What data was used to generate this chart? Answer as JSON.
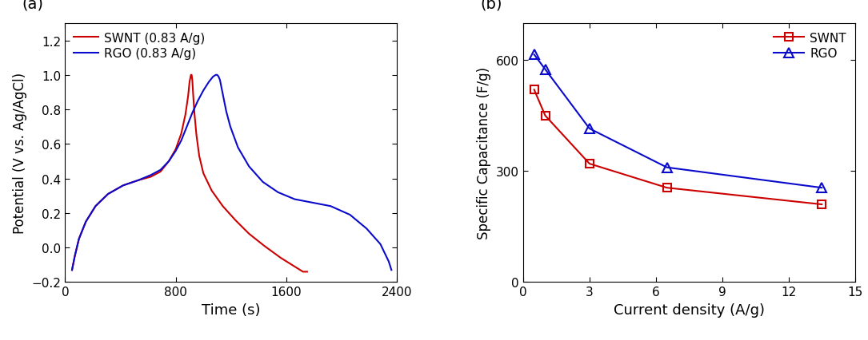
{
  "panel_a": {
    "title": "(a)",
    "xlabel": "Time (s)",
    "ylabel": "Potential (V vs. Ag/AgCl)",
    "xlim": [
      0,
      2400
    ],
    "ylim": [
      -0.2,
      1.3
    ],
    "xticks": [
      0,
      800,
      1600,
      2400
    ],
    "yticks": [
      -0.2,
      0.0,
      0.2,
      0.4,
      0.6,
      0.8,
      1.0,
      1.2
    ],
    "swnt_color": "#cc0000",
    "rgo_color": "#0a0acc",
    "swnt_label": "SWNT (0.83 A/g)",
    "rgo_label": "RGO (0.83 A/g)",
    "swnt_x": [
      50,
      70,
      100,
      150,
      220,
      310,
      420,
      530,
      620,
      690,
      750,
      800,
      840,
      870,
      890,
      900,
      910,
      915,
      920,
      925,
      935,
      950,
      970,
      1000,
      1060,
      1140,
      1230,
      1330,
      1440,
      1560,
      1660,
      1720,
      1750
    ],
    "swnt_y": [
      -0.13,
      -0.05,
      0.05,
      0.15,
      0.24,
      0.31,
      0.36,
      0.39,
      0.41,
      0.44,
      0.5,
      0.57,
      0.66,
      0.77,
      0.88,
      0.96,
      1.0,
      1.0,
      0.97,
      0.9,
      0.78,
      0.65,
      0.53,
      0.43,
      0.33,
      0.24,
      0.16,
      0.08,
      0.01,
      -0.06,
      -0.11,
      -0.14,
      -0.14
    ],
    "rgo_x": [
      50,
      70,
      100,
      150,
      220,
      310,
      420,
      530,
      620,
      690,
      750,
      800,
      840,
      880,
      920,
      960,
      1000,
      1040,
      1070,
      1090,
      1100,
      1110,
      1120,
      1130,
      1145,
      1165,
      1195,
      1250,
      1330,
      1430,
      1540,
      1660,
      1790,
      1920,
      2060,
      2180,
      2280,
      2340,
      2360
    ],
    "rgo_y": [
      -0.13,
      -0.05,
      0.05,
      0.15,
      0.24,
      0.31,
      0.36,
      0.39,
      0.42,
      0.45,
      0.5,
      0.56,
      0.62,
      0.7,
      0.78,
      0.85,
      0.91,
      0.96,
      0.99,
      1.0,
      1.0,
      0.99,
      0.97,
      0.93,
      0.87,
      0.79,
      0.7,
      0.58,
      0.47,
      0.38,
      0.32,
      0.28,
      0.26,
      0.24,
      0.19,
      0.11,
      0.02,
      -0.08,
      -0.13
    ]
  },
  "panel_b": {
    "title": "(b)",
    "xlabel": "Current density (A/g)",
    "ylabel": "Specific Capacitance (F/g)",
    "xlim": [
      0,
      15
    ],
    "ylim": [
      0,
      700
    ],
    "xticks": [
      0,
      3,
      6,
      9,
      12,
      15
    ],
    "yticks": [
      0,
      300,
      600
    ],
    "swnt_color": "#cc0000",
    "rgo_color": "#0a0acc",
    "swnt_label": "SWNT",
    "rgo_label": "RGO",
    "swnt_x": [
      0.5,
      1.0,
      3.0,
      6.5,
      13.5
    ],
    "swnt_y": [
      520,
      450,
      320,
      255,
      210
    ],
    "rgo_x": [
      0.5,
      1.0,
      3.0,
      6.5,
      13.5
    ],
    "rgo_y": [
      615,
      575,
      415,
      310,
      255
    ]
  }
}
